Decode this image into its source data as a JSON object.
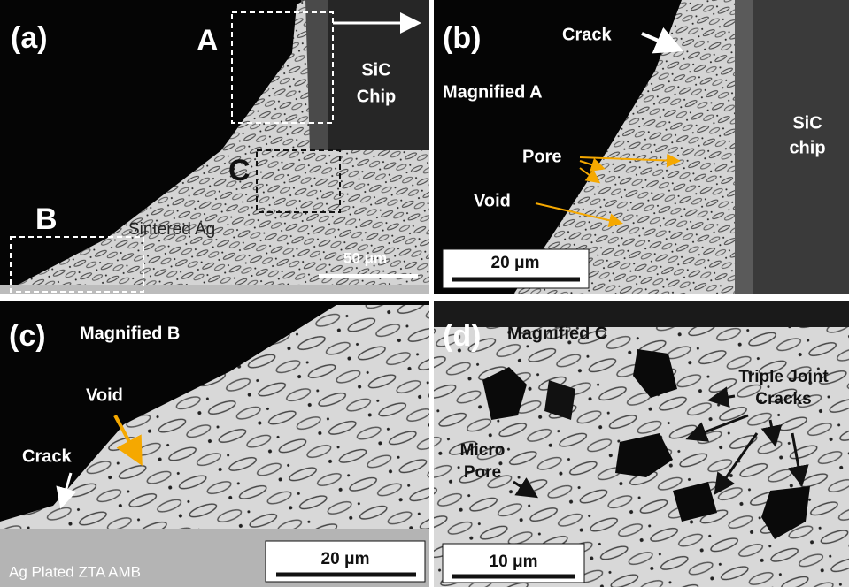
{
  "panels": [
    {
      "label": "(a)",
      "annotations": [
        "A",
        [
          "SiC",
          "Chip"
        ],
        "C",
        "B",
        "Sintered Ag"
      ],
      "scale_bar": "50 μm"
    },
    {
      "label": "(b)",
      "annotations": [
        "Crack",
        "Magnified A",
        "Pore",
        "Void",
        [
          "SiC",
          "chip"
        ]
      ],
      "scale_bar": "20 μm"
    },
    {
      "label": "(c)",
      "annotations": [
        "Magnified B",
        "Void",
        "Crack",
        "Ag Plated ZTA AMB"
      ],
      "scale_bar": "20 μm"
    },
    {
      "label": "(d)",
      "annotations": [
        "Magnified C",
        [
          "Triple Joint",
          "Cracks"
        ],
        [
          "Micro",
          "Pore"
        ]
      ],
      "scale_bar": "10 μm"
    }
  ]
}
